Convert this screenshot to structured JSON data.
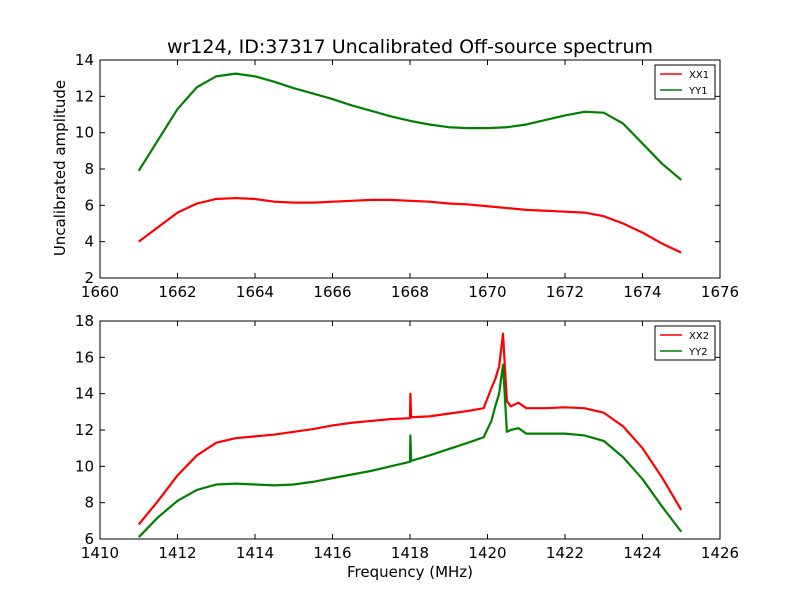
{
  "title": "wr124, ID:37317 Uncalibrated Off-source spectrum",
  "ylabel": "Uncalibrated amplitude",
  "xlabel": "Frequency (MHz)",
  "colors": {
    "red": "#ff0000",
    "green": "#007f00"
  },
  "chart_data": [
    {
      "type": "line",
      "xlim": [
        1660,
        1676
      ],
      "ylim": [
        2,
        14
      ],
      "xticks": [
        1660,
        1662,
        1664,
        1666,
        1668,
        1670,
        1672,
        1674,
        1676
      ],
      "yticks": [
        2,
        4,
        6,
        8,
        10,
        12,
        14
      ],
      "legend": "top-right",
      "grid": false,
      "series": [
        {
          "name": "XX1",
          "color": "#ff0000",
          "x": [
            1661.0,
            1661.5,
            1662.0,
            1662.5,
            1663.0,
            1663.5,
            1664.0,
            1664.5,
            1665.0,
            1665.5,
            1666.0,
            1666.5,
            1667.0,
            1667.5,
            1668.0,
            1668.5,
            1669.0,
            1669.5,
            1670.0,
            1670.5,
            1671.0,
            1671.5,
            1672.0,
            1672.5,
            1673.0,
            1673.5,
            1674.0,
            1674.5,
            1675.0
          ],
          "y": [
            4.0,
            4.8,
            5.6,
            6.1,
            6.35,
            6.4,
            6.35,
            6.2,
            6.15,
            6.15,
            6.2,
            6.25,
            6.3,
            6.3,
            6.25,
            6.2,
            6.1,
            6.05,
            5.95,
            5.85,
            5.75,
            5.7,
            5.65,
            5.6,
            5.4,
            5.0,
            4.5,
            3.9,
            3.4
          ]
        },
        {
          "name": "YY1",
          "color": "#007f00",
          "x": [
            1661.0,
            1661.5,
            1662.0,
            1662.5,
            1663.0,
            1663.5,
            1664.0,
            1664.5,
            1665.0,
            1665.5,
            1666.0,
            1666.5,
            1667.0,
            1667.5,
            1668.0,
            1668.5,
            1669.0,
            1669.5,
            1670.0,
            1670.5,
            1671.0,
            1671.5,
            1672.0,
            1672.5,
            1673.0,
            1673.5,
            1674.0,
            1674.5,
            1675.0
          ],
          "y": [
            7.9,
            9.6,
            11.3,
            12.5,
            13.1,
            13.25,
            13.1,
            12.8,
            12.45,
            12.15,
            11.85,
            11.5,
            11.2,
            10.9,
            10.65,
            10.45,
            10.3,
            10.25,
            10.25,
            10.3,
            10.45,
            10.7,
            10.95,
            11.15,
            11.1,
            10.5,
            9.4,
            8.3,
            7.4
          ]
        }
      ]
    },
    {
      "type": "line",
      "xlim": [
        1410,
        1426
      ],
      "ylim": [
        6,
        18
      ],
      "xticks": [
        1410,
        1412,
        1414,
        1416,
        1418,
        1420,
        1422,
        1424,
        1426
      ],
      "yticks": [
        6,
        8,
        10,
        12,
        14,
        16,
        18
      ],
      "legend": "top-right",
      "grid": false,
      "series": [
        {
          "name": "XX2",
          "color": "#ff0000",
          "x": [
            1411.0,
            1411.5,
            1412.0,
            1412.5,
            1413.0,
            1413.5,
            1414.0,
            1414.5,
            1415.0,
            1415.5,
            1416.0,
            1416.5,
            1417.0,
            1417.5,
            1418.0,
            1418.01,
            1418.03,
            1418.5,
            1419.0,
            1419.5,
            1419.9,
            1420.1,
            1420.2,
            1420.3,
            1420.4,
            1420.5,
            1420.6,
            1420.8,
            1421.0,
            1421.5,
            1422.0,
            1422.5,
            1423.0,
            1423.5,
            1424.0,
            1424.5,
            1425.0
          ],
          "y": [
            6.8,
            8.1,
            9.5,
            10.6,
            11.3,
            11.55,
            11.65,
            11.75,
            11.9,
            12.05,
            12.25,
            12.4,
            12.5,
            12.6,
            12.65,
            14.0,
            12.7,
            12.75,
            12.9,
            13.05,
            13.2,
            14.3,
            14.8,
            15.5,
            17.3,
            13.6,
            13.3,
            13.5,
            13.2,
            13.2,
            13.25,
            13.2,
            12.95,
            12.2,
            11.0,
            9.4,
            7.6
          ]
        },
        {
          "name": "YY2",
          "color": "#007f00",
          "x": [
            1411.0,
            1411.5,
            1412.0,
            1412.5,
            1413.0,
            1413.5,
            1414.0,
            1414.5,
            1415.0,
            1415.5,
            1416.0,
            1416.5,
            1417.0,
            1417.5,
            1418.0,
            1418.01,
            1418.03,
            1418.5,
            1419.0,
            1419.5,
            1419.9,
            1420.1,
            1420.2,
            1420.3,
            1420.4,
            1420.5,
            1420.6,
            1420.8,
            1421.0,
            1421.5,
            1422.0,
            1422.5,
            1423.0,
            1423.5,
            1424.0,
            1424.5,
            1425.0
          ],
          "y": [
            6.1,
            7.2,
            8.1,
            8.7,
            9.0,
            9.05,
            9.0,
            8.95,
            9.0,
            9.15,
            9.35,
            9.55,
            9.75,
            10.0,
            10.25,
            11.7,
            10.3,
            10.6,
            10.95,
            11.3,
            11.6,
            12.5,
            13.3,
            14.0,
            15.6,
            11.9,
            12.0,
            12.1,
            11.8,
            11.8,
            11.8,
            11.7,
            11.4,
            10.5,
            9.3,
            7.8,
            6.4
          ]
        }
      ]
    }
  ]
}
